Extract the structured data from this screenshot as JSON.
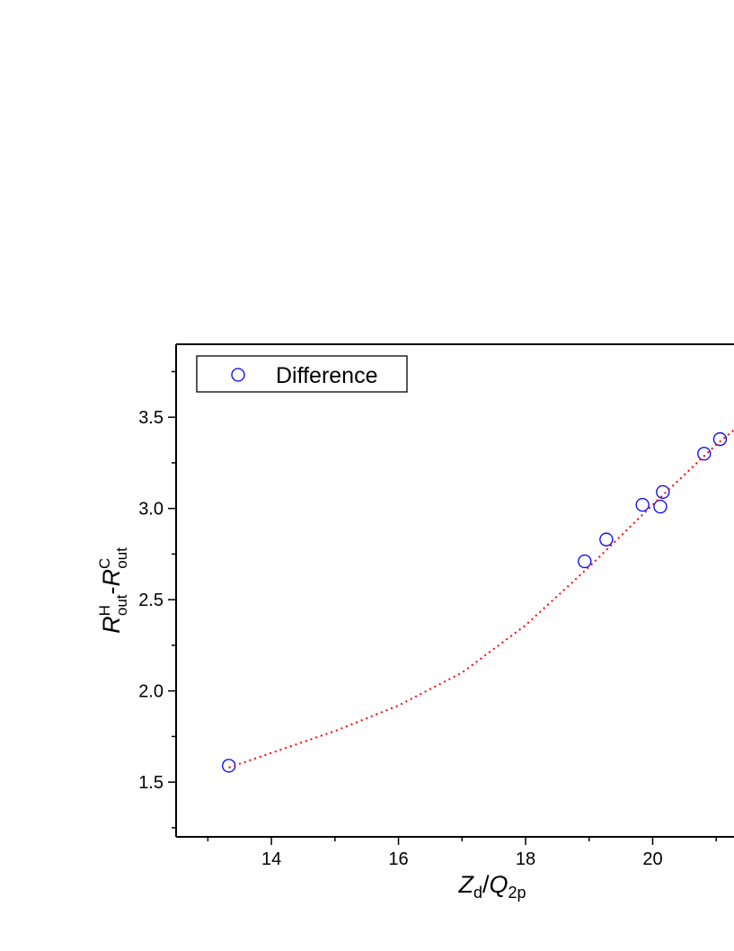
{
  "chart_data": {
    "type": "scatter",
    "x_label": [
      "Z",
      "d",
      "/",
      "Q",
      "2p"
    ],
    "y_label": [
      "R",
      "H",
      "out",
      "-",
      "R",
      "C",
      "out"
    ],
    "xlim": [
      12.5,
      21.28
    ],
    "ylim": [
      1.2,
      3.9
    ],
    "xticks": [
      14,
      16,
      18,
      20
    ],
    "xminorticks": [
      13,
      15,
      17,
      19,
      21
    ],
    "yticks": [
      1.5,
      2.0,
      2.5,
      3.0,
      3.5
    ],
    "yminorticks": [
      1.25,
      1.75,
      2.25,
      2.75,
      3.25,
      3.75
    ],
    "series": [
      {
        "name": "Difference",
        "color": "#0000ff",
        "x": [
          13.33,
          18.93,
          19.27,
          19.84,
          20.12,
          20.16,
          20.81,
          21.06
        ],
        "values": [
          1.59,
          2.71,
          2.83,
          3.02,
          3.01,
          3.09,
          3.3,
          3.38
        ]
      },
      {
        "color": "#ff0000",
        "line": "dotted",
        "x": [
          13.33,
          14,
          15,
          16,
          17,
          18,
          19,
          20,
          21,
          21.28
        ],
        "values": [
          1.58,
          1.66,
          1.78,
          1.92,
          2.1,
          2.36,
          2.68,
          3.02,
          3.35,
          3.43
        ]
      }
    ],
    "legend": "upper left"
  }
}
